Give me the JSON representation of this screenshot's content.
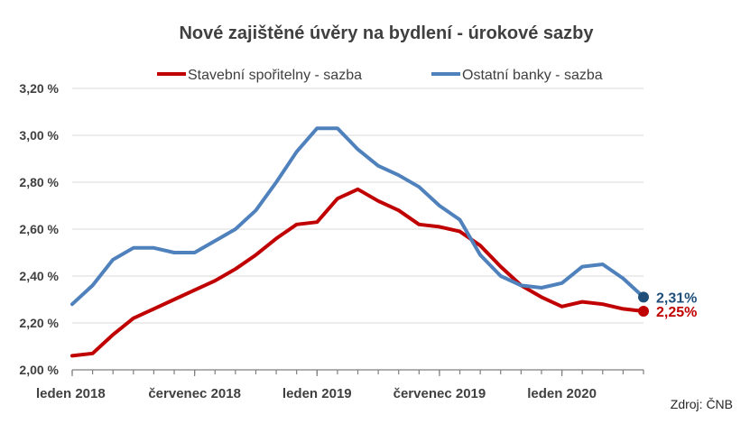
{
  "chart_data": {
    "type": "line",
    "title": "Nové zajištěné úvěry na bydlení - úrokové sazby",
    "xlabel": "",
    "ylabel": "",
    "ylim": [
      2.0,
      3.2
    ],
    "yticks": [
      2.0,
      2.2,
      2.4,
      2.6,
      2.8,
      3.0,
      3.2
    ],
    "ytick_labels": [
      "2,00 %",
      "2,20 %",
      "2,40 %",
      "2,60 %",
      "2,80 %",
      "3,00 %",
      "3,20 %"
    ],
    "x": [
      "2018-01",
      "2018-02",
      "2018-03",
      "2018-04",
      "2018-05",
      "2018-06",
      "2018-07",
      "2018-08",
      "2018-09",
      "2018-10",
      "2018-11",
      "2018-12",
      "2019-01",
      "2019-02",
      "2019-03",
      "2019-04",
      "2019-05",
      "2019-06",
      "2019-07",
      "2019-08",
      "2019-09",
      "2019-10",
      "2019-11",
      "2019-12",
      "2020-01",
      "2020-02",
      "2020-03",
      "2020-04",
      "2020-05"
    ],
    "xtick_labels": [
      {
        "index": 0,
        "label": "leden 2018"
      },
      {
        "index": 6,
        "label": "červenec 2018"
      },
      {
        "index": 12,
        "label": "leden 2019"
      },
      {
        "index": 18,
        "label": "červenec 2019"
      },
      {
        "index": 24,
        "label": "leden 2020"
      }
    ],
    "grid": true,
    "legend_position": "top",
    "series": [
      {
        "name": "Stavební spořitelny - sazba",
        "color": "#c00000",
        "values": [
          2.06,
          2.07,
          2.15,
          2.22,
          2.26,
          2.3,
          2.34,
          2.38,
          2.43,
          2.49,
          2.56,
          2.62,
          2.63,
          2.73,
          2.77,
          2.72,
          2.68,
          2.62,
          2.61,
          2.59,
          2.53,
          2.44,
          2.36,
          2.31,
          2.27,
          2.29,
          2.28,
          2.26,
          2.25
        ],
        "end_label": "2,25%"
      },
      {
        "name": "Ostatní banky - sazba",
        "color": "#4f81bd",
        "values": [
          2.28,
          2.36,
          2.47,
          2.52,
          2.52,
          2.5,
          2.5,
          2.55,
          2.6,
          2.68,
          2.8,
          2.93,
          3.03,
          3.03,
          2.94,
          2.87,
          2.83,
          2.78,
          2.7,
          2.64,
          2.49,
          2.4,
          2.36,
          2.35,
          2.37,
          2.44,
          2.45,
          2.39,
          2.31
        ],
        "end_label": "2,31%",
        "end_marker_color": "#1f4e79"
      }
    ],
    "source": "Zdroj: ČNB"
  }
}
